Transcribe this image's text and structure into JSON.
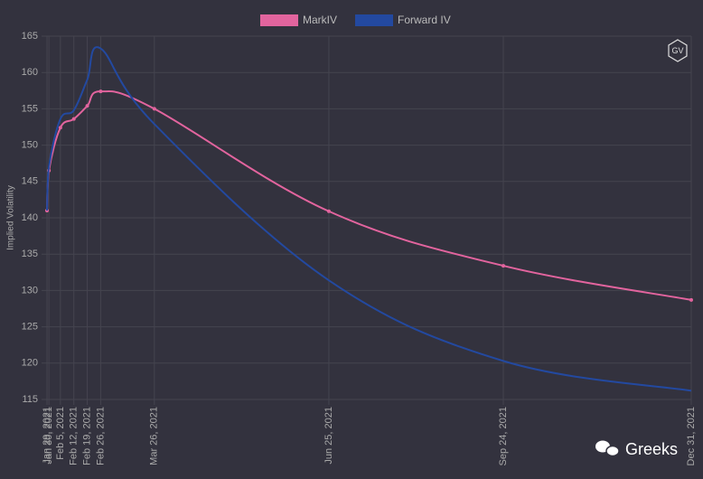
{
  "chart_data": {
    "type": "line",
    "y_label": "Implied Volatility",
    "logo": "GV",
    "watermark": "Greeks",
    "x": [
      "Jan 29, 2021",
      "Jan 30, 2021",
      "Feb 5, 2021",
      "Feb 12, 2021",
      "Feb 19, 2021",
      "Feb 26, 2021",
      "Mar 26, 2021",
      "Jun 25, 2021",
      "Sep 24, 2021",
      "Dec 31, 2021"
    ],
    "series": [
      {
        "name": "MarkIV",
        "color": "#e2649e",
        "values": [
          141,
          146.5,
          152.4,
          153.6,
          155.4,
          157.4,
          155,
          140.9,
          133.4,
          128.7
        ]
      },
      {
        "name": "Forward IV",
        "color": "#2349a0",
        "values": [
          141,
          147,
          153.6,
          154.8,
          159,
          163.3,
          152.9,
          131.4,
          120.3,
          116.2
        ]
      }
    ],
    "ylim": [
      115,
      165
    ],
    "yticks": [
      115,
      120,
      125,
      130,
      135,
      140,
      145,
      150,
      155,
      160,
      165
    ],
    "grid": true,
    "legend": "top"
  }
}
